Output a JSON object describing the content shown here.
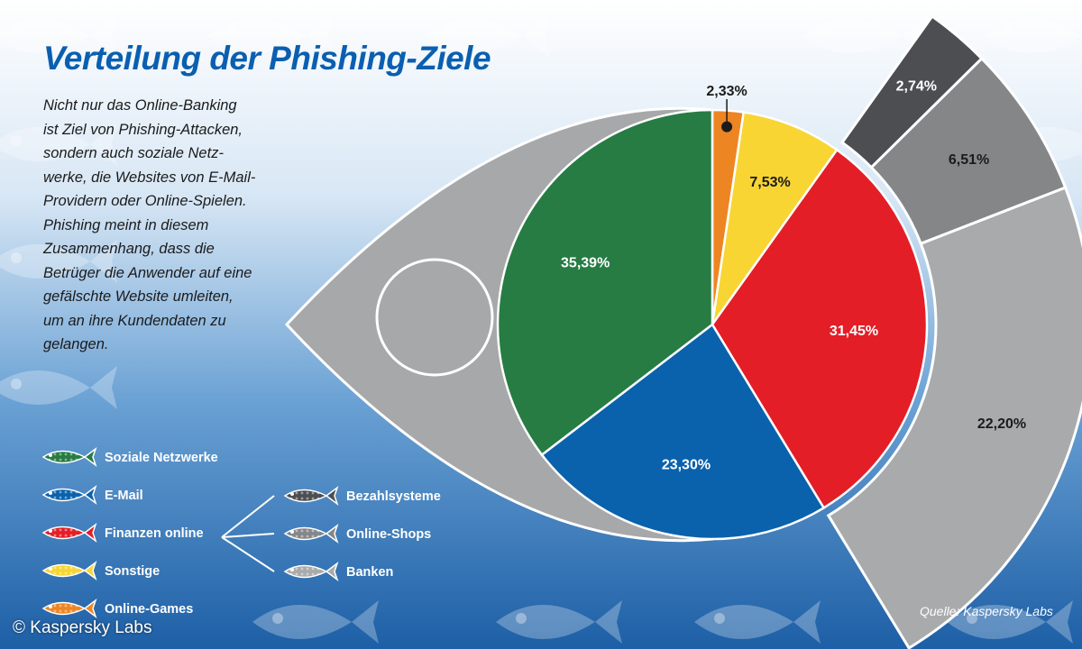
{
  "title": "Verteilung der Phishing-Ziele",
  "intro_lines": [
    "Nicht nur das Online-Banking",
    "ist Ziel von Phishing-Attacken,",
    "sondern auch soziale Netz-",
    "werke, die Websites von E-Mail-",
    "Providern oder Online-Spielen.",
    "Phishing meint in diesem",
    "Zusammenhang, dass die",
    "Betrüger die Anwender auf eine",
    "gefälschte Website umleiten,",
    "um an ihre Kundendaten zu",
    "gelangen."
  ],
  "source": "Quelle: Kaspersky Labs",
  "copyright": "© Kaspersky Labs",
  "colors": {
    "soziale_netzwerke": "#267c43",
    "email": "#0a62ad",
    "finanzen_online": "#e41e26",
    "sonstige": "#f8d532",
    "online_games": "#ee8523",
    "bezahlsysteme": "#4d4e51",
    "online_shops": "#858688",
    "banken": "#a9aaab",
    "title": "#0a5fb0"
  },
  "chart_data": {
    "type": "pie",
    "slices": [
      {
        "label": "Online-Games",
        "value": 2.33,
        "value_label": "2,33%",
        "color": "#ee8523"
      },
      {
        "label": "Sonstige",
        "value": 7.53,
        "value_label": "7,53%",
        "color": "#f8d532"
      },
      {
        "label": "Finanzen online",
        "value": 31.45,
        "value_label": "31,45%",
        "color": "#e41e26"
      },
      {
        "label": "E-Mail",
        "value": 23.3,
        "value_label": "23,30%",
        "color": "#0a62ad"
      },
      {
        "label": "Soziale Netzwerke",
        "value": 35.39,
        "value_label": "35,39%",
        "color": "#267c43"
      }
    ],
    "breakdown": {
      "parent": "Finanzen online",
      "slices": [
        {
          "label": "Bezahlsysteme",
          "value": 2.74,
          "value_label": "2,74%",
          "color": "#4d4e51"
        },
        {
          "label": "Online-Shops",
          "value": 6.51,
          "value_label": "6,51%",
          "color": "#858688"
        },
        {
          "label": "Banken",
          "value": 22.2,
          "value_label": "22,20%",
          "color": "#a9aaab"
        }
      ]
    },
    "legend_main": [
      {
        "label": "Soziale Netzwerke",
        "color": "#267c43"
      },
      {
        "label": "E-Mail",
        "color": "#0a62ad"
      },
      {
        "label": "Finanzen online",
        "color": "#e41e26"
      },
      {
        "label": "Sonstige",
        "color": "#f8d532"
      },
      {
        "label": "Online-Games",
        "color": "#ee8523"
      }
    ],
    "legend_sub": [
      {
        "label": "Bezahlsysteme",
        "color": "#4d4e51"
      },
      {
        "label": "Online-Shops",
        "color": "#858688"
      },
      {
        "label": "Banken",
        "color": "#a9aaab"
      }
    ]
  }
}
